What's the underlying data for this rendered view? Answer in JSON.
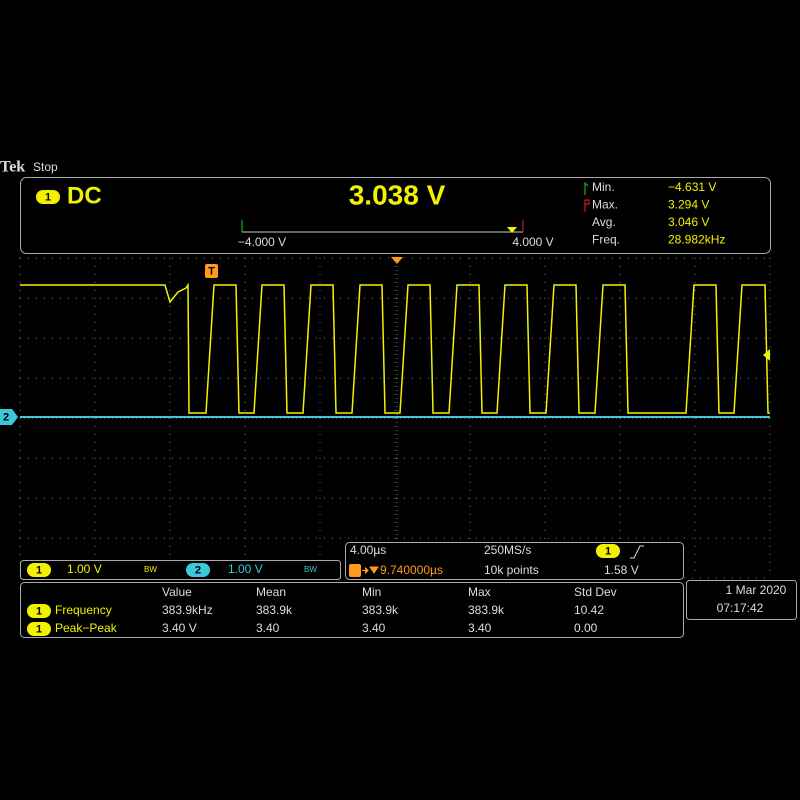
{
  "header": {
    "brand": "Tek",
    "state": "Stop"
  },
  "readout": {
    "channel": "1",
    "coupling": "DC",
    "value": "3.038 V",
    "stats": [
      {
        "label": "Min.",
        "value": "−4.631 V"
      },
      {
        "label": "Max.",
        "value": "3.294 V"
      },
      {
        "label": "Avg.",
        "value": "3.046 V"
      },
      {
        "label": "Freq.",
        "value": "28.982kHz"
      }
    ],
    "ruler": {
      "min": "−4.000 V",
      "max": "4.000 V"
    }
  },
  "trigger_marker": "T",
  "channels": [
    {
      "number": "1",
      "scale": "1.00 V",
      "bw": "BW"
    },
    {
      "number": "2",
      "scale": "1.00 V",
      "bw": "BW"
    }
  ],
  "timebase": {
    "scale": "4.00µs",
    "sample_rate": "250MS/s",
    "trigger_channel": "1",
    "position": "9.740000µs",
    "record": "10k points",
    "trigger_level": "1.58 V"
  },
  "measurements": {
    "columns": [
      "Value",
      "Mean",
      "Min",
      "Max",
      "Std Dev"
    ],
    "rows": [
      {
        "channel": "1",
        "name": "Frequency",
        "values": [
          "383.9kHz",
          "383.9k",
          "383.9k",
          "383.9k",
          "10.42"
        ]
      },
      {
        "channel": "1",
        "name": "Peak−Peak",
        "values": [
          "3.40 V",
          "3.40",
          "3.40",
          "3.40",
          "0.00"
        ]
      }
    ]
  },
  "datetime": {
    "date": "1 Mar  2020",
    "time": "07:17:42"
  }
}
